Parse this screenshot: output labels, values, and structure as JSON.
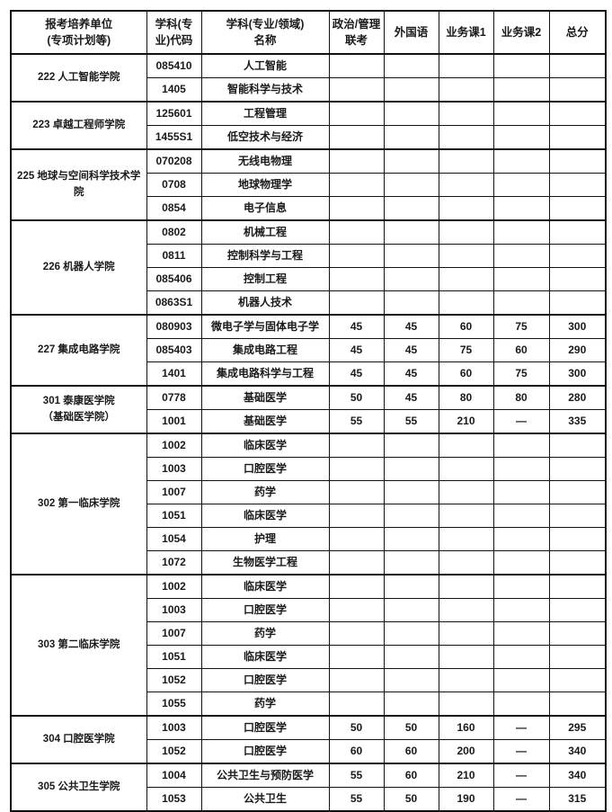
{
  "colors": {
    "background": "#ffffff",
    "border": "#111111",
    "text": "#1a1a1a"
  },
  "table": {
    "headers": [
      {
        "key": "unit",
        "label": "报考培养单位\n(专项计划等)"
      },
      {
        "key": "code",
        "label": "学科(专\n业)代码"
      },
      {
        "key": "name",
        "label": "学科(专业/领域)\n名称"
      },
      {
        "key": "politics",
        "label": "政治/管理\n联考"
      },
      {
        "key": "foreign",
        "label": "外国语"
      },
      {
        "key": "course1",
        "label": "业务课1"
      },
      {
        "key": "course2",
        "label": "业务课2"
      },
      {
        "key": "total",
        "label": "总分"
      }
    ],
    "groups": [
      {
        "unit": "222 人工智能学院",
        "rows": [
          {
            "code": "085410",
            "name": "人工智能",
            "politics": "",
            "foreign": "",
            "course1": "",
            "course2": "",
            "total": ""
          },
          {
            "code": "1405",
            "name": "智能科学与技术",
            "politics": "",
            "foreign": "",
            "course1": "",
            "course2": "",
            "total": ""
          }
        ]
      },
      {
        "unit": "223 卓越工程师学院",
        "rows": [
          {
            "code": "125601",
            "name": "工程管理",
            "politics": "",
            "foreign": "",
            "course1": "",
            "course2": "",
            "total": ""
          },
          {
            "code": "1455S1",
            "name": "低空技术与经济",
            "politics": "",
            "foreign": "",
            "course1": "",
            "course2": "",
            "total": ""
          }
        ]
      },
      {
        "unit": "225 地球与空间科学技术学\n院",
        "rows": [
          {
            "code": "070208",
            "name": "无线电物理",
            "politics": "",
            "foreign": "",
            "course1": "",
            "course2": "",
            "total": ""
          },
          {
            "code": "0708",
            "name": "地球物理学",
            "politics": "",
            "foreign": "",
            "course1": "",
            "course2": "",
            "total": ""
          },
          {
            "code": "0854",
            "name": "电子信息",
            "politics": "",
            "foreign": "",
            "course1": "",
            "course2": "",
            "total": ""
          }
        ]
      },
      {
        "unit": "226 机器人学院",
        "rows": [
          {
            "code": "0802",
            "name": "机械工程",
            "politics": "",
            "foreign": "",
            "course1": "",
            "course2": "",
            "total": ""
          },
          {
            "code": "0811",
            "name": "控制科学与工程",
            "politics": "",
            "foreign": "",
            "course1": "",
            "course2": "",
            "total": ""
          },
          {
            "code": "085406",
            "name": "控制工程",
            "politics": "",
            "foreign": "",
            "course1": "",
            "course2": "",
            "total": ""
          },
          {
            "code": "0863S1",
            "name": "机器人技术",
            "politics": "",
            "foreign": "",
            "course1": "",
            "course2": "",
            "total": ""
          }
        ]
      },
      {
        "unit": "227 集成电路学院",
        "rows": [
          {
            "code": "080903",
            "name": "微电子学与固体电子学",
            "politics": "45",
            "foreign": "45",
            "course1": "60",
            "course2": "75",
            "total": "300"
          },
          {
            "code": "085403",
            "name": "集成电路工程",
            "politics": "45",
            "foreign": "45",
            "course1": "75",
            "course2": "60",
            "total": "290"
          },
          {
            "code": "1401",
            "name": "集成电路科学与工程",
            "politics": "45",
            "foreign": "45",
            "course1": "60",
            "course2": "75",
            "total": "300"
          }
        ]
      },
      {
        "unit": "301 泰康医学院\n（基础医学院）",
        "rows": [
          {
            "code": "0778",
            "name": "基础医学",
            "politics": "50",
            "foreign": "45",
            "course1": "80",
            "course2": "80",
            "total": "280"
          },
          {
            "code": "1001",
            "name": "基础医学",
            "politics": "55",
            "foreign": "55",
            "course1": "210",
            "course2": "—",
            "total": "335"
          }
        ]
      },
      {
        "unit": "302 第一临床学院",
        "rows": [
          {
            "code": "1002",
            "name": "临床医学",
            "politics": "",
            "foreign": "",
            "course1": "",
            "course2": "",
            "total": ""
          },
          {
            "code": "1003",
            "name": "口腔医学",
            "politics": "",
            "foreign": "",
            "course1": "",
            "course2": "",
            "total": ""
          },
          {
            "code": "1007",
            "name": "药学",
            "politics": "",
            "foreign": "",
            "course1": "",
            "course2": "",
            "total": ""
          },
          {
            "code": "1051",
            "name": "临床医学",
            "politics": "",
            "foreign": "",
            "course1": "",
            "course2": "",
            "total": ""
          },
          {
            "code": "1054",
            "name": "护理",
            "politics": "",
            "foreign": "",
            "course1": "",
            "course2": "",
            "total": ""
          },
          {
            "code": "1072",
            "name": "生物医学工程",
            "politics": "",
            "foreign": "",
            "course1": "",
            "course2": "",
            "total": ""
          }
        ]
      },
      {
        "unit": "303 第二临床学院",
        "rows": [
          {
            "code": "1002",
            "name": "临床医学",
            "politics": "",
            "foreign": "",
            "course1": "",
            "course2": "",
            "total": ""
          },
          {
            "code": "1003",
            "name": "口腔医学",
            "politics": "",
            "foreign": "",
            "course1": "",
            "course2": "",
            "total": ""
          },
          {
            "code": "1007",
            "name": "药学",
            "politics": "",
            "foreign": "",
            "course1": "",
            "course2": "",
            "total": ""
          },
          {
            "code": "1051",
            "name": "临床医学",
            "politics": "",
            "foreign": "",
            "course1": "",
            "course2": "",
            "total": ""
          },
          {
            "code": "1052",
            "name": "口腔医学",
            "politics": "",
            "foreign": "",
            "course1": "",
            "course2": "",
            "total": ""
          },
          {
            "code": "1055",
            "name": "药学",
            "politics": "",
            "foreign": "",
            "course1": "",
            "course2": "",
            "total": ""
          }
        ]
      },
      {
        "unit": "304 口腔医学院",
        "rows": [
          {
            "code": "1003",
            "name": "口腔医学",
            "politics": "50",
            "foreign": "50",
            "course1": "160",
            "course2": "—",
            "total": "295"
          },
          {
            "code": "1052",
            "name": "口腔医学",
            "politics": "60",
            "foreign": "60",
            "course1": "200",
            "course2": "—",
            "total": "340"
          }
        ]
      },
      {
        "unit": "305 公共卫生学院",
        "rows": [
          {
            "code": "1004",
            "name": "公共卫生与预防医学",
            "politics": "55",
            "foreign": "60",
            "course1": "210",
            "course2": "—",
            "total": "340"
          },
          {
            "code": "1053",
            "name": "公共卫生",
            "politics": "55",
            "foreign": "50",
            "course1": "190",
            "course2": "—",
            "total": "315"
          }
        ]
      }
    ]
  }
}
